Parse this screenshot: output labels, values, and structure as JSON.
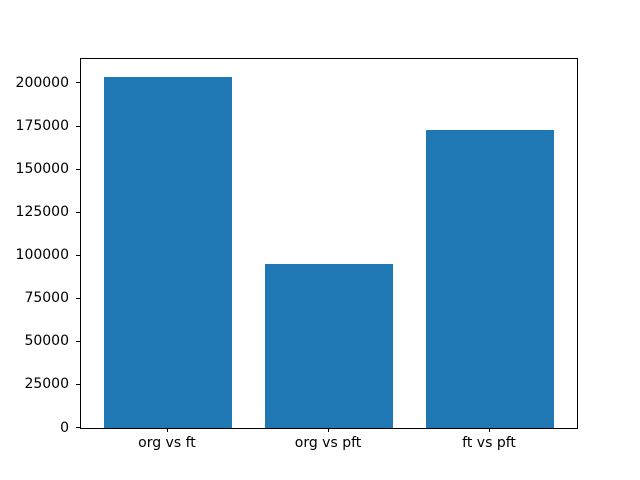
{
  "chart_data": {
    "type": "bar",
    "categories": [
      "org vs ft",
      "org vs pft",
      "ft vs pft"
    ],
    "values": [
      204000,
      95000,
      173000
    ],
    "yticks": [
      0,
      25000,
      50000,
      75000,
      100000,
      125000,
      150000,
      175000,
      200000
    ],
    "ylim": [
      0,
      214200
    ],
    "bar_color": "#1f77b4",
    "axis_color": "#000000",
    "background_color": "#ffffff",
    "grid": false,
    "legend": null,
    "bar_width_fraction": 0.8
  }
}
